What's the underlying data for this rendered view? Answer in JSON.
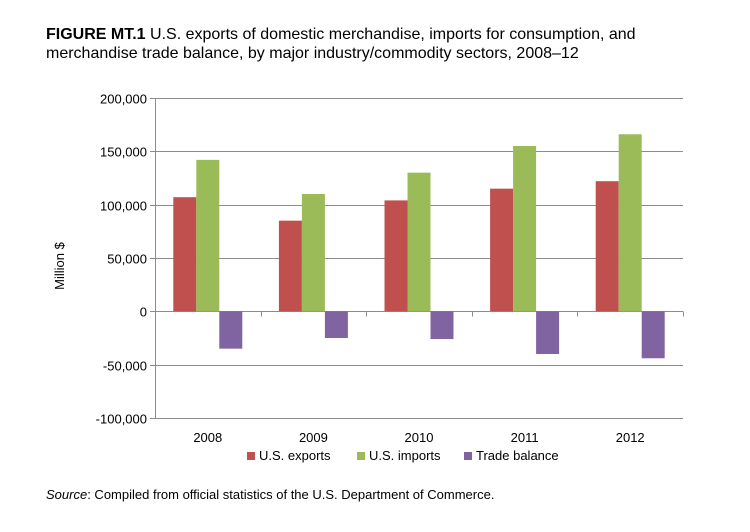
{
  "figure": {
    "label": "FIGURE MT.1",
    "title": "U.S. exports of domestic merchandise, imports for consumption, and merchandise trade balance, by major industry/commodity sectors, 2008–12"
  },
  "source": {
    "label": "Source",
    "text": ": Compiled from official statistics of the U.S. Department of Commerce."
  },
  "chart_data": {
    "type": "bar",
    "categories": [
      "2008",
      "2009",
      "2010",
      "2011",
      "2012"
    ],
    "series": [
      {
        "name": "U.S. exports",
        "color": "#c0504d",
        "values": [
          107000,
          85000,
          104000,
          115000,
          122000
        ]
      },
      {
        "name": "U.S. imports",
        "color": "#9bbb59",
        "values": [
          142000,
          110000,
          130000,
          155000,
          166000
        ]
      },
      {
        "name": "Trade balance",
        "color": "#8064a2",
        "values": [
          -35000,
          -25000,
          -26000,
          -40000,
          -44000
        ]
      }
    ],
    "ylabel": "Million $",
    "xlabel": "",
    "ylim": [
      -100000,
      200000
    ],
    "yticks": [
      -100000,
      -50000,
      0,
      50000,
      100000,
      150000,
      200000
    ],
    "ytick_labels": [
      "-100,000",
      "-50,000",
      "0",
      "50,000",
      "100,000",
      "150,000",
      "200,000"
    ],
    "grid": true,
    "legend_position": "bottom"
  }
}
